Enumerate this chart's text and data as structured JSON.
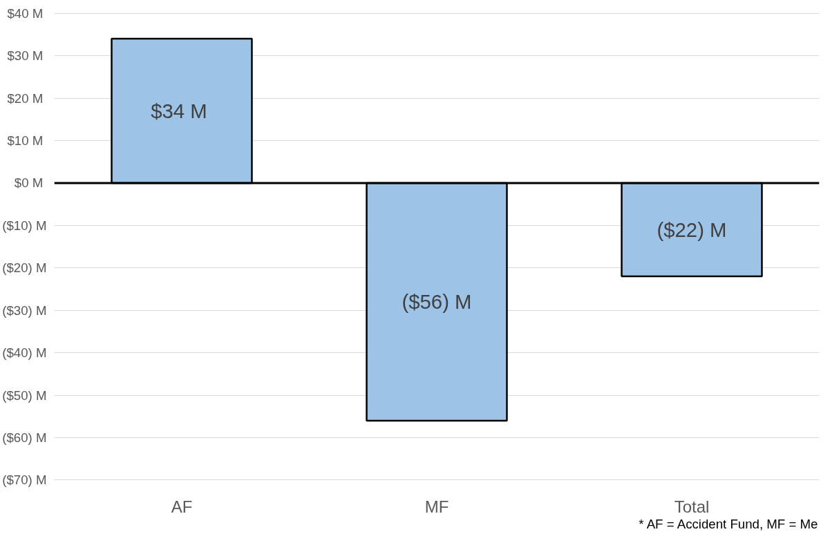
{
  "chart_data": {
    "type": "bar",
    "categories": [
      "AF",
      "MF",
      "Total"
    ],
    "values": [
      34,
      -56,
      -22
    ],
    "color": "#9dc3e6",
    "value_labels": [
      "$34  M",
      "($56) M",
      "($22) M"
    ],
    "ylim": [
      -70,
      40
    ],
    "yticks": [
      {
        "value": 40,
        "label": "$40  M"
      },
      {
        "value": 30,
        "label": "$30  M"
      },
      {
        "value": 20,
        "label": "$20  M"
      },
      {
        "value": 10,
        "label": "$10  M"
      },
      {
        "value": 0,
        "label": "$0  M"
      },
      {
        "value": -10,
        "label": "($10) M"
      },
      {
        "value": -20,
        "label": "($20) M"
      },
      {
        "value": -30,
        "label": "($30) M"
      },
      {
        "value": -40,
        "label": "($40) M"
      },
      {
        "value": -50,
        "label": "($50) M"
      },
      {
        "value": -60,
        "label": "($60) M"
      },
      {
        "value": -70,
        "label": "($70) M"
      }
    ],
    "grid": "y",
    "annotations": [
      "* AF = Accident Fund, MF = Me"
    ]
  }
}
